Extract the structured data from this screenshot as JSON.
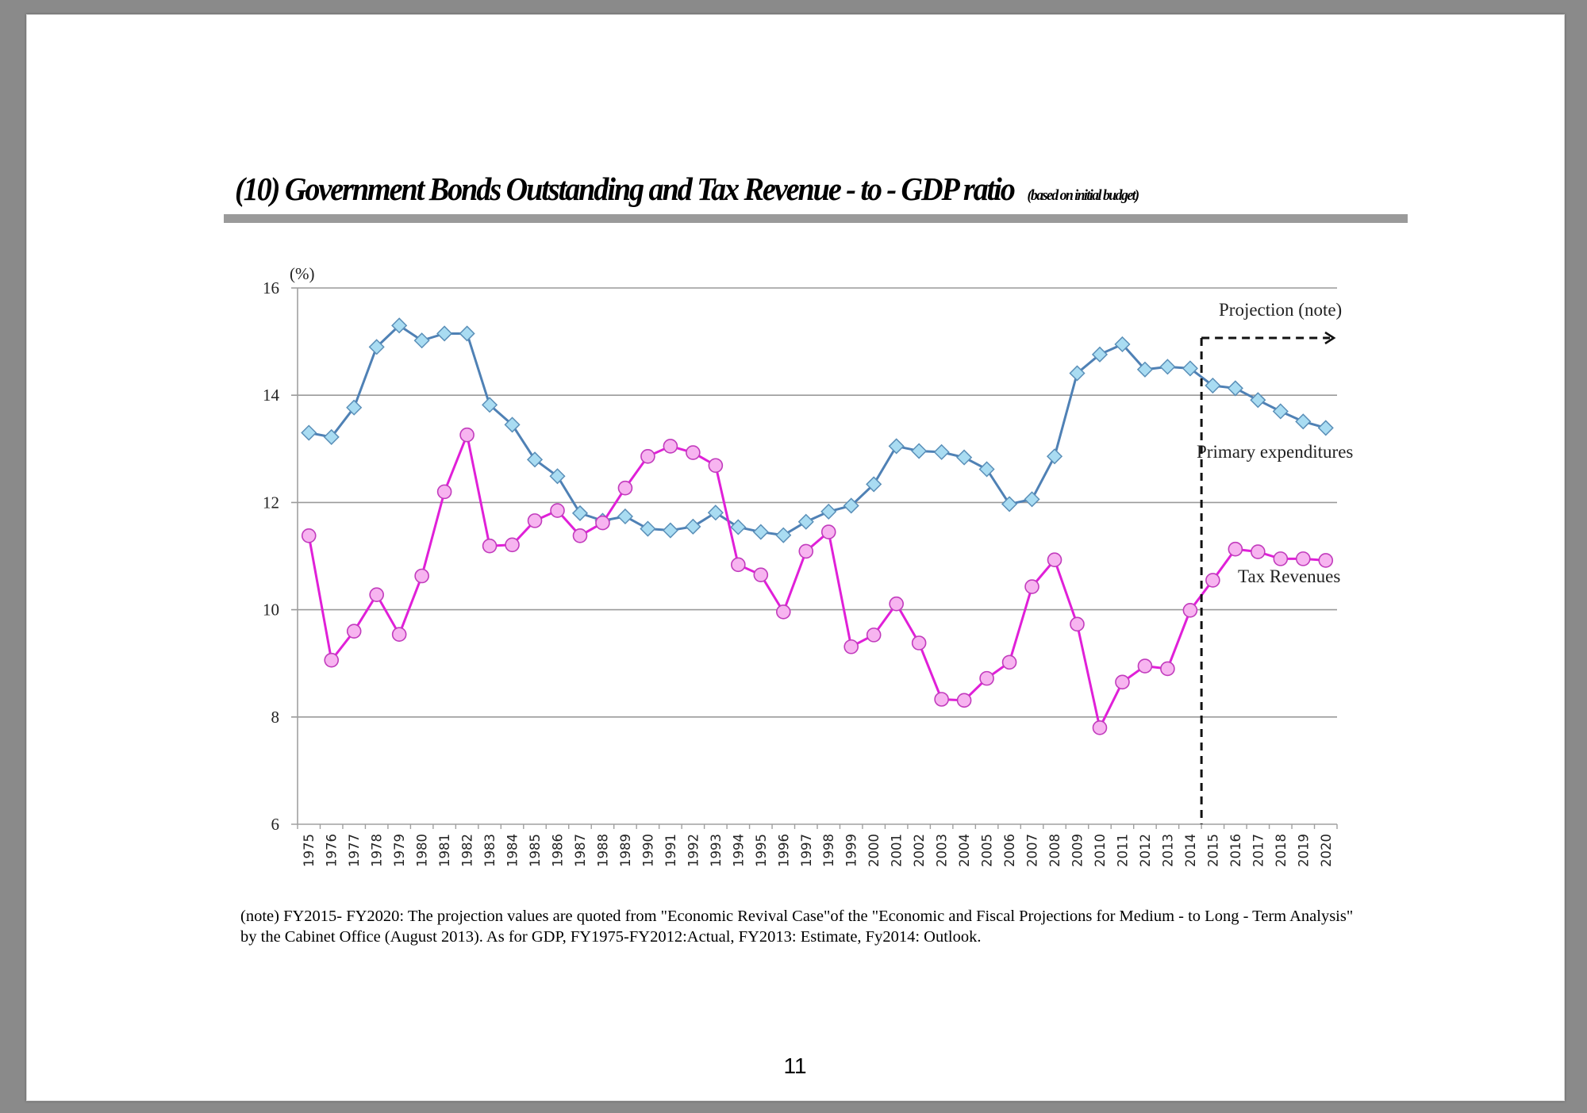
{
  "page": {
    "title": "(10) Government Bonds Outstanding and Tax Revenue - to - GDP ratio",
    "subtitle": "(based on initial budget)",
    "note": "(note)  FY2015- FY2020: The projection values are quoted from \"Economic Revival Case\"of the \"Economic and Fiscal Projections for Medium - to Long - Term  Analysis\" by the Cabinet Office (August 2013). As for GDP, FY1975-FY2012:Actual, FY2013: Estimate, Fy2014: Outlook.",
    "page_number": "11"
  },
  "chart_data": {
    "type": "line",
    "title": "(10) Government Bonds Outstanding and Tax Revenue - to - GDP ratio",
    "ylabel": "(%)",
    "xlabel": "",
    "ylim": [
      6,
      16
    ],
    "yticks": [
      6,
      8,
      10,
      12,
      14,
      16
    ],
    "grid": true,
    "categories": [
      "1975",
      "1976",
      "1977",
      "1978",
      "1979",
      "1980",
      "1981",
      "1982",
      "1983",
      "1984",
      "1985",
      "1986",
      "1987",
      "1988",
      "1989",
      "1990",
      "1991",
      "1992",
      "1993",
      "1994",
      "1995",
      "1996",
      "1997",
      "1998",
      "1999",
      "2000",
      "2001",
      "2002",
      "2003",
      "2004",
      "2005",
      "2006",
      "2007",
      "2008",
      "2009",
      "2010",
      "2011",
      "2012",
      "2013",
      "2014",
      "2015",
      "2016",
      "2017",
      "2018",
      "2019",
      "2020"
    ],
    "series": [
      {
        "name": "Primary expenditures",
        "label": "Primary expenditures",
        "marker": "diamond",
        "line_color": "#4f81b5",
        "marker_fill": "#a9dcf2",
        "values": [
          13.3,
          13.22,
          13.77,
          14.9,
          15.3,
          15.02,
          15.15,
          15.15,
          13.82,
          13.45,
          12.8,
          12.49,
          11.8,
          11.66,
          11.74,
          11.51,
          11.48,
          11.55,
          11.81,
          11.54,
          11.45,
          11.39,
          11.64,
          11.83,
          11.94,
          12.34,
          13.05,
          12.96,
          12.94,
          12.84,
          12.62,
          11.97,
          12.06,
          12.86,
          14.41,
          14.76,
          14.95,
          14.48,
          14.53,
          14.5,
          14.18,
          14.13,
          13.91,
          13.7,
          13.51,
          13.39
        ]
      },
      {
        "name": "Tax Revenues",
        "label": "Tax Revenues",
        "marker": "circle",
        "line_color": "#e020d8",
        "marker_fill": "#f7b4f0",
        "values": [
          11.38,
          9.06,
          9.6,
          10.28,
          9.54,
          10.63,
          12.2,
          13.26,
          11.19,
          11.21,
          11.66,
          11.85,
          11.38,
          11.62,
          12.27,
          12.86,
          13.05,
          12.93,
          12.69,
          10.84,
          10.65,
          9.96,
          11.09,
          11.45,
          9.31,
          9.53,
          10.11,
          9.38,
          8.33,
          8.31,
          8.72,
          9.02,
          10.43,
          10.93,
          9.73,
          7.8,
          8.65,
          8.95,
          8.9,
          9.99,
          10.55,
          11.13,
          11.08,
          10.95,
          10.95,
          10.92
        ]
      }
    ],
    "annotations": {
      "projection_label": "Projection (note)",
      "projection_start": "2015"
    }
  }
}
